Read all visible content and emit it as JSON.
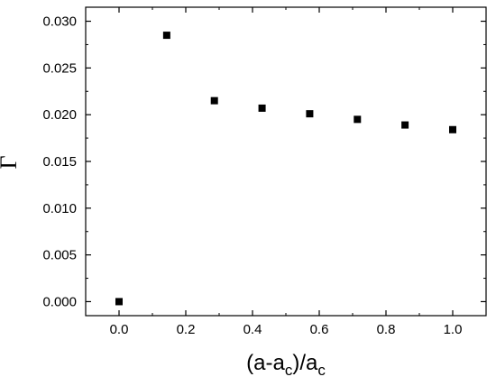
{
  "chart_data": {
    "type": "scatter",
    "x": [
      0.0,
      0.1429,
      0.2857,
      0.4286,
      0.5714,
      0.7143,
      0.8571,
      1.0
    ],
    "y": [
      0.0,
      0.0285,
      0.0215,
      0.0207,
      0.0201,
      0.0195,
      0.0189,
      0.0184
    ],
    "xlim": [
      -0.1,
      1.1
    ],
    "ylim": [
      -0.0015,
      0.0315
    ],
    "xticks": [
      "0.0",
      "0.2",
      "0.4",
      "0.6",
      "0.8",
      "1.0"
    ],
    "yticks": [
      "0.000",
      "0.005",
      "0.010",
      "0.015",
      "0.020",
      "0.025",
      "0.030"
    ],
    "xlabel": {
      "main": "(a-a",
      "sub": "c",
      "mid": ")/a",
      "sub2": "c"
    },
    "ylabel": "Γ",
    "grid": false,
    "marker_color": "#000000"
  }
}
